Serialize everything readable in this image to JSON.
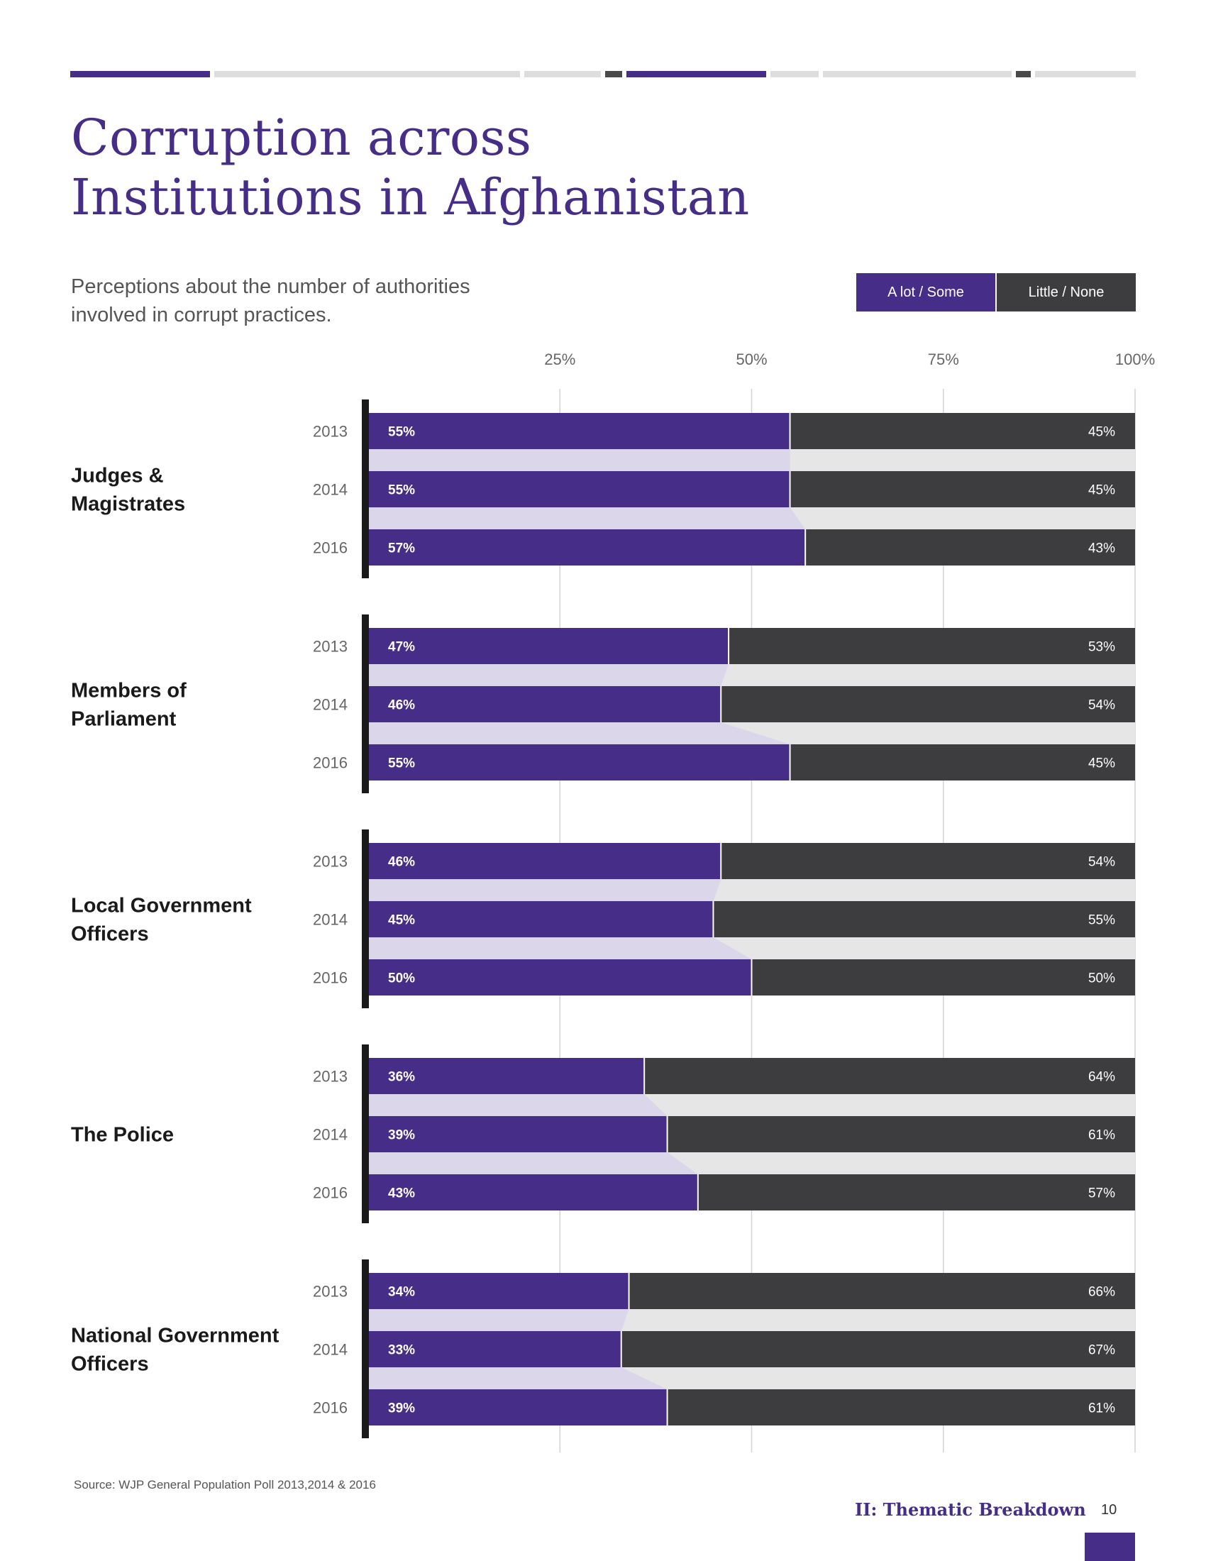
{
  "page": {
    "title_line1": "Corruption across",
    "title_line2": "Institutions in Afghanistan",
    "subtitle_line1": "Perceptions about the number of authorities",
    "subtitle_line2": "involved in corrupt practices.",
    "source": "Source: WJP General Population Poll 2013,2014 & 2016",
    "section": "II: Thematic Breakdown",
    "page_number": "10"
  },
  "colors": {
    "purple": "#462d87",
    "dark": "#3d3d3f",
    "light_purple": "#dcd6ea",
    "light_gray": "#e6e6e6",
    "grid": "#d4d4d4",
    "year_text": "#666666",
    "label_text": "#1a1a1a",
    "topbar_gray": "#dedede",
    "topbar_dark": "#4a4a4a"
  },
  "legend": {
    "a_lot_some": "A lot / Some",
    "little_none": "Little / None"
  },
  "chart_data": {
    "type": "bar",
    "orientation": "horizontal-stacked",
    "title": "Corruption across Institutions in Afghanistan",
    "subtitle": "Perceptions about the number of authorities involved in corrupt practices.",
    "xlim": [
      0,
      100
    ],
    "xticks": [
      "25%",
      "50%",
      "75%",
      "100%"
    ],
    "xtick_values": [
      25,
      50,
      75,
      100
    ],
    "series": [
      {
        "name": "A lot / Some",
        "color": "#462d87"
      },
      {
        "name": "Little / None",
        "color": "#3d3d3f"
      }
    ],
    "groups": [
      {
        "label_line1": "Judges &",
        "label_line2": "Magistrates",
        "rows": [
          {
            "year": "2013",
            "a": 55,
            "b": 45,
            "a_label": "55%",
            "b_label": "45%"
          },
          {
            "year": "2014",
            "a": 55,
            "b": 45,
            "a_label": "55%",
            "b_label": "45%"
          },
          {
            "year": "2016",
            "a": 57,
            "b": 43,
            "a_label": "57%",
            "b_label": "43%"
          }
        ]
      },
      {
        "label_line1": "Members of",
        "label_line2": "Parliament",
        "rows": [
          {
            "year": "2013",
            "a": 47,
            "b": 53,
            "a_label": "47%",
            "b_label": "53%"
          },
          {
            "year": "2014",
            "a": 46,
            "b": 54,
            "a_label": "46%",
            "b_label": "54%"
          },
          {
            "year": "2016",
            "a": 55,
            "b": 45,
            "a_label": "55%",
            "b_label": "45%"
          }
        ]
      },
      {
        "label_line1": "Local Government",
        "label_line2": "Officers",
        "rows": [
          {
            "year": "2013",
            "a": 46,
            "b": 54,
            "a_label": "46%",
            "b_label": "54%"
          },
          {
            "year": "2014",
            "a": 45,
            "b": 55,
            "a_label": "45%",
            "b_label": "55%"
          },
          {
            "year": "2016",
            "a": 50,
            "b": 50,
            "a_label": "50%",
            "b_label": "50%"
          }
        ]
      },
      {
        "label_line1": "The Police",
        "label_line2": "",
        "rows": [
          {
            "year": "2013",
            "a": 36,
            "b": 64,
            "a_label": "36%",
            "b_label": "64%"
          },
          {
            "year": "2014",
            "a": 39,
            "b": 61,
            "a_label": "39%",
            "b_label": "61%"
          },
          {
            "year": "2016",
            "a": 43,
            "b": 57,
            "a_label": "43%",
            "b_label": "57%"
          }
        ]
      },
      {
        "label_line1": "National Government",
        "label_line2": "Officers",
        "rows": [
          {
            "year": "2013",
            "a": 34,
            "b": 66,
            "a_label": "34%",
            "b_label": "66%"
          },
          {
            "year": "2014",
            "a": 33,
            "b": 67,
            "a_label": "33%",
            "b_label": "67%"
          },
          {
            "year": "2016",
            "a": 39,
            "b": 61,
            "a_label": "39%",
            "b_label": "61%"
          }
        ]
      }
    ]
  }
}
